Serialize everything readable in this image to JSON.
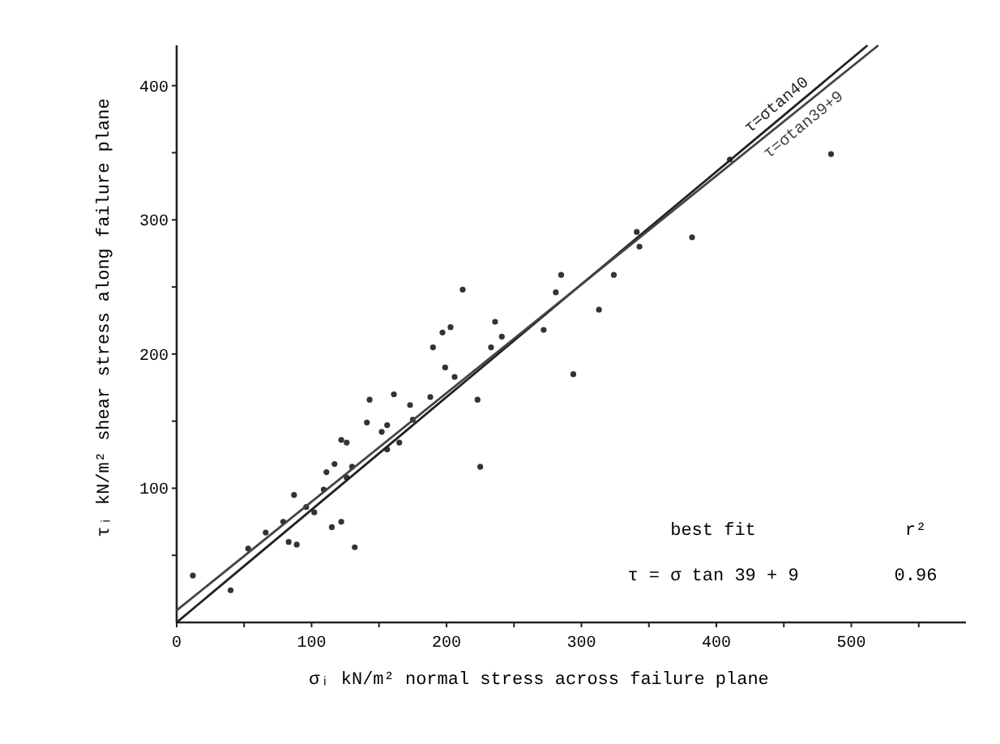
{
  "chart_data": {
    "type": "scatter",
    "xlabel": "σᵢ kN/m² normal stress across failure plane",
    "ylabel": "τᵢ kN/m² shear stress along failure plane",
    "xlim": [
      0,
      585
    ],
    "ylim": [
      0,
      430
    ],
    "xticks": [
      0,
      {
        "value": 50,
        "label": null
      },
      100,
      {
        "value": 150,
        "label": null
      },
      200,
      {
        "value": 250,
        "label": null
      },
      300,
      {
        "value": 350,
        "label": null
      },
      400,
      {
        "value": 450,
        "label": null
      },
      500,
      {
        "value": 550,
        "label": null
      }
    ],
    "yticks": [
      {
        "value": 50,
        "label": null
      },
      100,
      {
        "value": 150,
        "label": null
      },
      200,
      {
        "value": 250,
        "label": null
      },
      300,
      {
        "value": 350,
        "label": null
      },
      400
    ],
    "grid": false,
    "series": [
      {
        "marker": "circle",
        "color": "#333333",
        "x": [
          12,
          40,
          53,
          66,
          79,
          87,
          83,
          89,
          96,
          102,
          109,
          111,
          117,
          122,
          126,
          115,
          122,
          132,
          126,
          130,
          141,
          143,
          152,
          156,
          161,
          156,
          165,
          173,
          175,
          188,
          190,
          197,
          203,
          199,
          212,
          206,
          223,
          225,
          236,
          233,
          241,
          272,
          281,
          285,
          294,
          313,
          324,
          341,
          343,
          382,
          410,
          485
        ],
        "values": [
          35,
          24,
          55,
          67,
          75,
          95,
          60,
          58,
          86,
          82,
          99,
          112,
          118,
          136,
          134,
          71,
          75,
          56,
          108,
          116,
          149,
          166,
          142,
          147,
          170,
          129,
          134,
          162,
          151,
          168,
          205,
          216,
          220,
          190,
          248,
          183,
          166,
          116,
          224,
          205,
          213,
          218,
          246,
          259,
          185,
          233,
          259,
          291,
          280,
          287,
          345,
          349
        ]
      },
      {
        "type": "line",
        "name": "τ=σtan40",
        "color": "#222222",
        "x": [
          0,
          512
        ],
        "values": [
          0,
          430
        ],
        "line_style": "solid"
      },
      {
        "type": "line",
        "name": "τ=σtan39+9",
        "color": "#444444",
        "x": [
          0,
          520
        ],
        "values": [
          9,
          430
        ],
        "line_style": "solid"
      }
    ],
    "annotations": [
      "best fit",
      "r²",
      "τ = σ tan 39 + 9",
      "0.96"
    ]
  }
}
